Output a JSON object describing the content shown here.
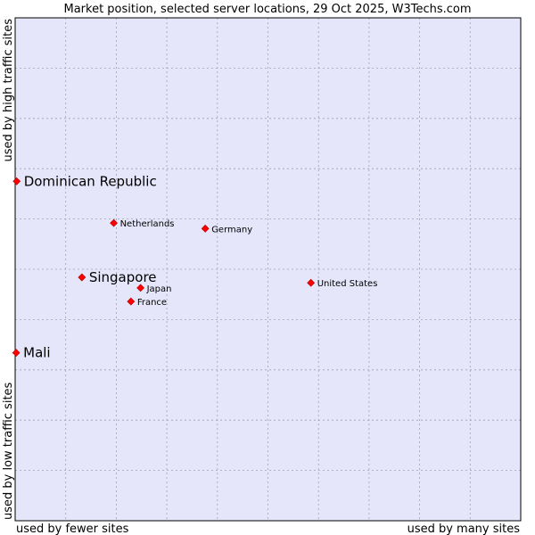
{
  "chart_data": {
    "type": "scatter",
    "title": "Market position, selected server locations, 29 Oct 2025, W3Techs.com",
    "xlabel_left": "used by fewer sites",
    "xlabel_right": "used by many sites",
    "ylabel_bottom": "used by low traffic sites",
    "ylabel_top": "used by high traffic sites",
    "xlim": [
      0,
      100
    ],
    "ylim": [
      0,
      100
    ],
    "grid": true,
    "colors": {
      "plot_bg": "#e6e6fa",
      "marker": "#ff0000",
      "grid": "#a0a0b4",
      "frame": "#000000"
    },
    "points": [
      {
        "label": "Dominican Republic",
        "x": 0.3,
        "y": 67.5,
        "emphasis": true
      },
      {
        "label": "Netherlands",
        "x": 19.5,
        "y": 59.2,
        "emphasis": false
      },
      {
        "label": "Germany",
        "x": 37.6,
        "y": 58.1,
        "emphasis": false
      },
      {
        "label": "Singapore",
        "x": 13.2,
        "y": 48.4,
        "emphasis": true
      },
      {
        "label": "Japan",
        "x": 24.8,
        "y": 46.3,
        "emphasis": false
      },
      {
        "label": "United States",
        "x": 58.5,
        "y": 47.3,
        "emphasis": false
      },
      {
        "label": "France",
        "x": 22.9,
        "y": 43.6,
        "emphasis": false
      },
      {
        "label": "Mali",
        "x": 0.2,
        "y": 33.4,
        "emphasis": true
      }
    ]
  }
}
